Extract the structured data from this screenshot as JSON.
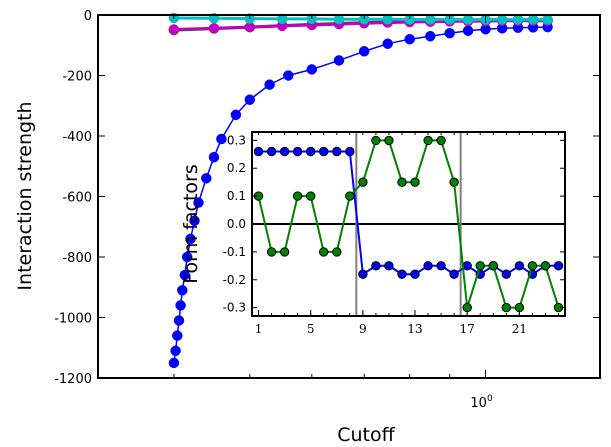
{
  "chart_data": [
    {
      "type": "line",
      "xlabel": "Cutoff",
      "ylabel": "Interaction strength",
      "xscale": "log",
      "xticks": [
        {
          "value": 1,
          "label": "10",
          "exponent": "0"
        }
      ],
      "yticks": [
        0,
        -200,
        -400,
        -600,
        -800,
        -1000,
        -1200
      ],
      "ylim": [
        -1200,
        0
      ],
      "xlim": [
        0.32,
        1.4
      ],
      "grid": false,
      "series": [
        {
          "color": "#0000ff",
          "x": [
            0.4,
            0.402,
            0.404,
            0.406,
            0.408,
            0.41,
            0.413,
            0.416,
            0.42,
            0.425,
            0.43,
            0.44,
            0.45,
            0.46,
            0.48,
            0.5,
            0.53,
            0.56,
            0.6,
            0.65,
            0.7,
            0.75,
            0.8,
            0.85,
            0.9,
            0.95,
            1.0,
            1.05,
            1.1,
            1.15,
            1.2
          ],
          "y": [
            -1150,
            -1110,
            -1060,
            -1010,
            -960,
            -910,
            -860,
            -800,
            -740,
            -680,
            -620,
            -540,
            -470,
            -410,
            -330,
            -280,
            -230,
            -200,
            -180,
            -150,
            -120,
            -95,
            -80,
            -70,
            -60,
            -52,
            -47,
            -44,
            -42,
            -41,
            -40
          ]
        },
        {
          "color": "#bf00bf",
          "x": [
            0.4,
            0.45,
            0.5,
            0.55,
            0.6,
            0.65,
            0.7,
            0.75,
            0.8,
            0.85,
            0.9,
            0.95,
            1.0,
            1.05,
            1.1,
            1.15,
            1.2
          ],
          "y": [
            -48,
            -44,
            -40,
            -36,
            -33,
            -30,
            -27,
            -25,
            -23,
            -22,
            -21,
            -20,
            -20,
            -19,
            -19,
            -19,
            -19
          ]
        },
        {
          "color": "#008000",
          "x": [
            0.4,
            0.45,
            0.5,
            0.55,
            0.6,
            0.65,
            0.7,
            0.75,
            0.8,
            0.85,
            0.9,
            0.95,
            1.0,
            1.05,
            1.1,
            1.15,
            1.2
          ],
          "y": [
            -50,
            -45,
            -40,
            -35,
            -31,
            -28,
            -25,
            -23,
            -21,
            -20,
            -19,
            -19,
            -18,
            -18,
            -18,
            -18,
            -18
          ]
        },
        {
          "color": "#00bfbf",
          "x": [
            0.4,
            0.45,
            0.5,
            0.55,
            0.6,
            0.65,
            0.7,
            0.75,
            0.8,
            0.85,
            0.9,
            0.95,
            1.0,
            1.05,
            1.1,
            1.15,
            1.2
          ],
          "y": [
            -10,
            -11,
            -12,
            -13,
            -13,
            -14,
            -14,
            -14,
            -15,
            -15,
            -15,
            -15,
            -15,
            -15,
            -15,
            -15,
            -15
          ]
        }
      ]
    },
    {
      "type": "line",
      "ylabel": "Form factors",
      "xticks": [
        1,
        5,
        9,
        13,
        17,
        21
      ],
      "yticks": [
        "0.3",
        "0.2",
        "0.1",
        "0.0",
        "-0.1",
        "-0.2",
        "-0.3"
      ],
      "xlim": [
        0.5,
        24.5
      ],
      "ylim": [
        -0.33,
        0.33
      ],
      "separators": [
        8.5,
        16.5
      ],
      "zero_line": 0,
      "series": [
        {
          "color": "#0000ff",
          "x": [
            1,
            2,
            3,
            4,
            5,
            6,
            7,
            8,
            9,
            10,
            11,
            12,
            13,
            14,
            15,
            16,
            17,
            18,
            19,
            20,
            21,
            22,
            23,
            24
          ],
          "y": [
            0.26,
            0.26,
            0.26,
            0.26,
            0.26,
            0.26,
            0.26,
            0.26,
            -0.18,
            -0.15,
            -0.15,
            -0.18,
            -0.18,
            -0.15,
            -0.15,
            -0.18,
            -0.15,
            -0.18,
            -0.15,
            -0.18,
            -0.15,
            -0.18,
            -0.15,
            -0.15
          ]
        },
        {
          "color": "#008000",
          "x": [
            1,
            2,
            3,
            4,
            5,
            6,
            7,
            8,
            9,
            10,
            11,
            12,
            13,
            14,
            15,
            16,
            17,
            18,
            19,
            20,
            21,
            22,
            23,
            24
          ],
          "y": [
            0.1,
            -0.1,
            -0.1,
            0.1,
            0.1,
            -0.1,
            -0.1,
            0.1,
            0.15,
            0.3,
            0.3,
            0.15,
            0.15,
            0.3,
            0.3,
            0.15,
            -0.3,
            -0.15,
            -0.15,
            -0.3,
            -0.3,
            -0.15,
            -0.15,
            -0.3
          ]
        }
      ]
    }
  ]
}
